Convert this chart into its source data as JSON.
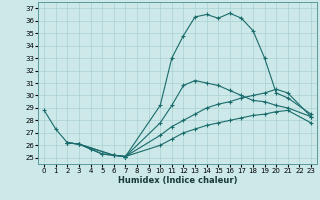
{
  "xlabel": "Humidex (Indice chaleur)",
  "bg_color": "#cce8e8",
  "grid_color": "#aad0d0",
  "line_color": "#1a6b6b",
  "xlim": [
    -0.5,
    23.5
  ],
  "ylim": [
    24.5,
    37.5
  ],
  "xticks": [
    0,
    1,
    2,
    3,
    4,
    5,
    6,
    7,
    8,
    9,
    10,
    11,
    12,
    13,
    14,
    15,
    16,
    17,
    18,
    19,
    20,
    21,
    22,
    23
  ],
  "yticks": [
    25,
    26,
    27,
    28,
    29,
    30,
    31,
    32,
    33,
    34,
    35,
    36,
    37
  ],
  "lines": [
    {
      "x": [
        0,
        1,
        2,
        3,
        4,
        5,
        6,
        7,
        10,
        11,
        12,
        13,
        14,
        15,
        16,
        17,
        18,
        19,
        20,
        21,
        23
      ],
      "y": [
        28.8,
        27.3,
        26.2,
        26.1,
        25.7,
        25.3,
        25.2,
        25.1,
        29.2,
        33.0,
        34.8,
        36.3,
        36.5,
        36.2,
        36.6,
        36.2,
        35.2,
        33.0,
        30.2,
        29.8,
        28.5
      ],
      "marker": "+"
    },
    {
      "x": [
        2,
        3,
        4,
        5,
        6,
        7,
        10,
        11,
        12,
        13,
        14,
        15,
        16,
        17,
        18,
        19,
        20,
        21,
        23
      ],
      "y": [
        26.2,
        26.1,
        25.7,
        25.3,
        25.2,
        25.1,
        27.8,
        29.2,
        30.8,
        31.2,
        31.0,
        30.8,
        30.4,
        30.0,
        29.6,
        29.5,
        29.2,
        29.0,
        28.3
      ],
      "marker": "+"
    },
    {
      "x": [
        2,
        3,
        6,
        7,
        10,
        11,
        12,
        13,
        14,
        15,
        16,
        17,
        18,
        19,
        20,
        21,
        23
      ],
      "y": [
        26.2,
        26.1,
        25.2,
        25.1,
        26.8,
        27.5,
        28.0,
        28.5,
        29.0,
        29.3,
        29.5,
        29.8,
        30.0,
        30.2,
        30.5,
        30.2,
        28.3
      ],
      "marker": "+"
    },
    {
      "x": [
        2,
        3,
        6,
        7,
        10,
        11,
        12,
        13,
        14,
        15,
        16,
        17,
        18,
        19,
        20,
        21,
        23
      ],
      "y": [
        26.2,
        26.1,
        25.2,
        25.1,
        26.0,
        26.5,
        27.0,
        27.3,
        27.6,
        27.8,
        28.0,
        28.2,
        28.4,
        28.5,
        28.7,
        28.8,
        27.8
      ],
      "marker": "+"
    }
  ]
}
